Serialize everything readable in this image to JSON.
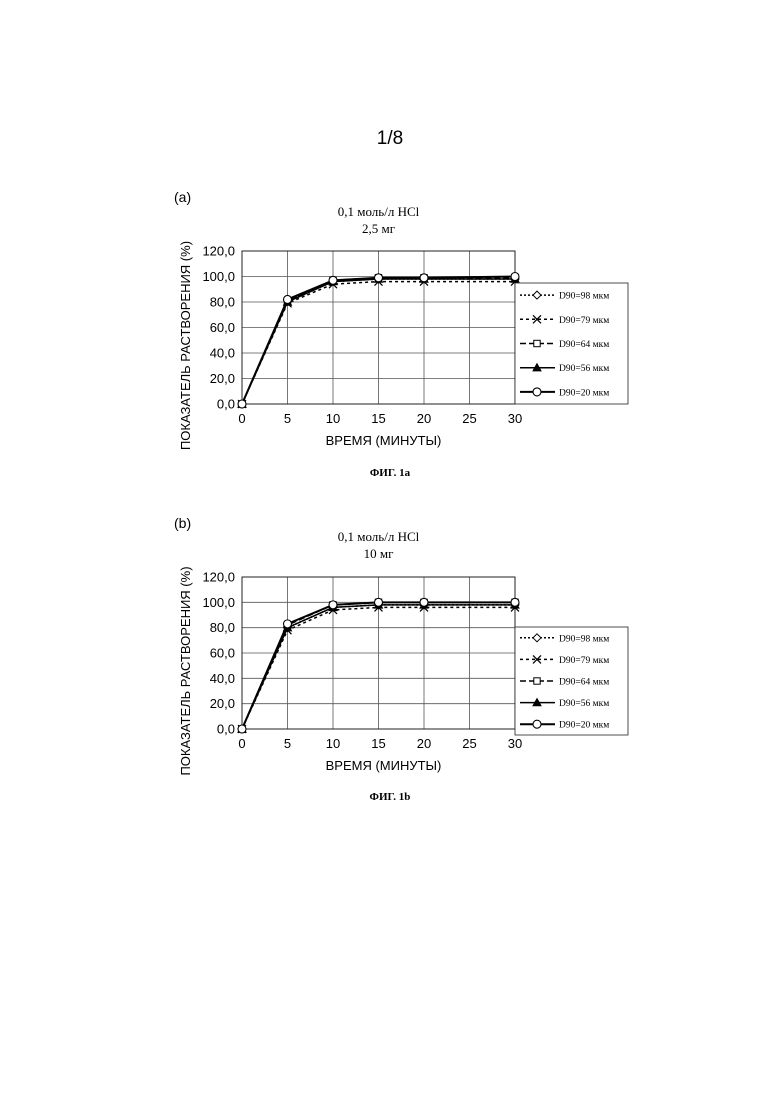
{
  "page_number": "1/8",
  "legend_style": {
    "line_color": "#000000",
    "grid_color": "#555555"
  },
  "chart_data": [
    {
      "label": "(a)",
      "caption": "ФИГ. 1a",
      "type": "line",
      "title": "0,1 моль/л HCl",
      "subtitle": "2,5 мг",
      "xlabel": "ВРЕМЯ (МИНУТЫ)",
      "ylabel": "ПОКАЗАТЕЛЬ РАСТВОРЕНИЯ (%)",
      "x": [
        0,
        5,
        10,
        15,
        20,
        25,
        30
      ],
      "xticks": [
        "0",
        "5",
        "10",
        "15",
        "20",
        "25",
        "30"
      ],
      "yticks": [
        "0,0",
        "20,0",
        "40,0",
        "60,0",
        "80,0",
        "100,0",
        "120,0"
      ],
      "xlim": [
        0,
        30
      ],
      "ylim": [
        0,
        120
      ],
      "grid": true,
      "legend_position": "right",
      "series": [
        {
          "name": "D90=98 мкм",
          "marker": "diamond",
          "dash": "2,2",
          "x": [
            0,
            5,
            10,
            15,
            20,
            30
          ],
          "values": [
            0,
            81,
            96,
            98,
            98,
            98
          ]
        },
        {
          "name": "D90=79 мкм",
          "marker": "x",
          "dash": "3,3",
          "x": [
            0,
            5,
            10,
            15,
            20,
            30
          ],
          "values": [
            0,
            79,
            94,
            96,
            96,
            96
          ]
        },
        {
          "name": "D90=64 мкм",
          "marker": "square",
          "dash": "6,3",
          "x": [
            0,
            5,
            10,
            15,
            20,
            30
          ],
          "values": [
            0,
            81,
            97,
            99,
            99,
            99
          ]
        },
        {
          "name": "D90=56 мкм",
          "marker": "triangle",
          "dash": "",
          "x": [
            0,
            5,
            10,
            15,
            20,
            30
          ],
          "values": [
            0,
            80,
            96,
            98,
            98,
            98
          ]
        },
        {
          "name": "D90=20 мкм",
          "marker": "circle",
          "dash": "",
          "x": [
            0,
            5,
            10,
            15,
            20,
            30
          ],
          "values": [
            0,
            82,
            97,
            99,
            99,
            100
          ]
        }
      ]
    },
    {
      "label": "(b)",
      "caption": "ФИГ. 1b",
      "type": "line",
      "title": "0,1 моль/л HCl",
      "subtitle": "10 мг",
      "xlabel": "ВРЕМЯ (МИНУТЫ)",
      "ylabel": "ПОКАЗАТЕЛЬ РАСТВОРЕНИЯ (%)",
      "x": [
        0,
        5,
        10,
        15,
        20,
        25,
        30
      ],
      "xticks": [
        "0",
        "5",
        "10",
        "15",
        "20",
        "25",
        "30"
      ],
      "yticks": [
        "0,0",
        "20,0",
        "40,0",
        "60,0",
        "80,0",
        "100,0",
        "120,0"
      ],
      "xlim": [
        0,
        30
      ],
      "ylim": [
        0,
        120
      ],
      "grid": true,
      "legend_position": "right",
      "series": [
        {
          "name": "D90=98 мкм",
          "marker": "diamond",
          "dash": "2,2",
          "x": [
            0,
            5,
            10,
            15,
            20,
            30
          ],
          "values": [
            0,
            80,
            96,
            98,
            98,
            98
          ]
        },
        {
          "name": "D90=79 мкм",
          "marker": "x",
          "dash": "3,3",
          "x": [
            0,
            5,
            10,
            15,
            20,
            30
          ],
          "values": [
            0,
            78,
            94,
            96,
            96,
            96
          ]
        },
        {
          "name": "D90=64 мкм",
          "marker": "square",
          "dash": "6,3",
          "x": [
            0,
            5,
            10,
            15,
            20,
            30
          ],
          "values": [
            0,
            82,
            98,
            100,
            100,
            100
          ]
        },
        {
          "name": "D90=56 мкм",
          "marker": "triangle",
          "dash": "",
          "x": [
            0,
            5,
            10,
            15,
            20,
            30
          ],
          "values": [
            0,
            80,
            96,
            98,
            98,
            98
          ]
        },
        {
          "name": "D90=20 мкм",
          "marker": "circle",
          "dash": "",
          "x": [
            0,
            5,
            10,
            15,
            20,
            30
          ],
          "values": [
            0,
            83,
            98,
            100,
            100,
            100
          ]
        }
      ]
    }
  ]
}
